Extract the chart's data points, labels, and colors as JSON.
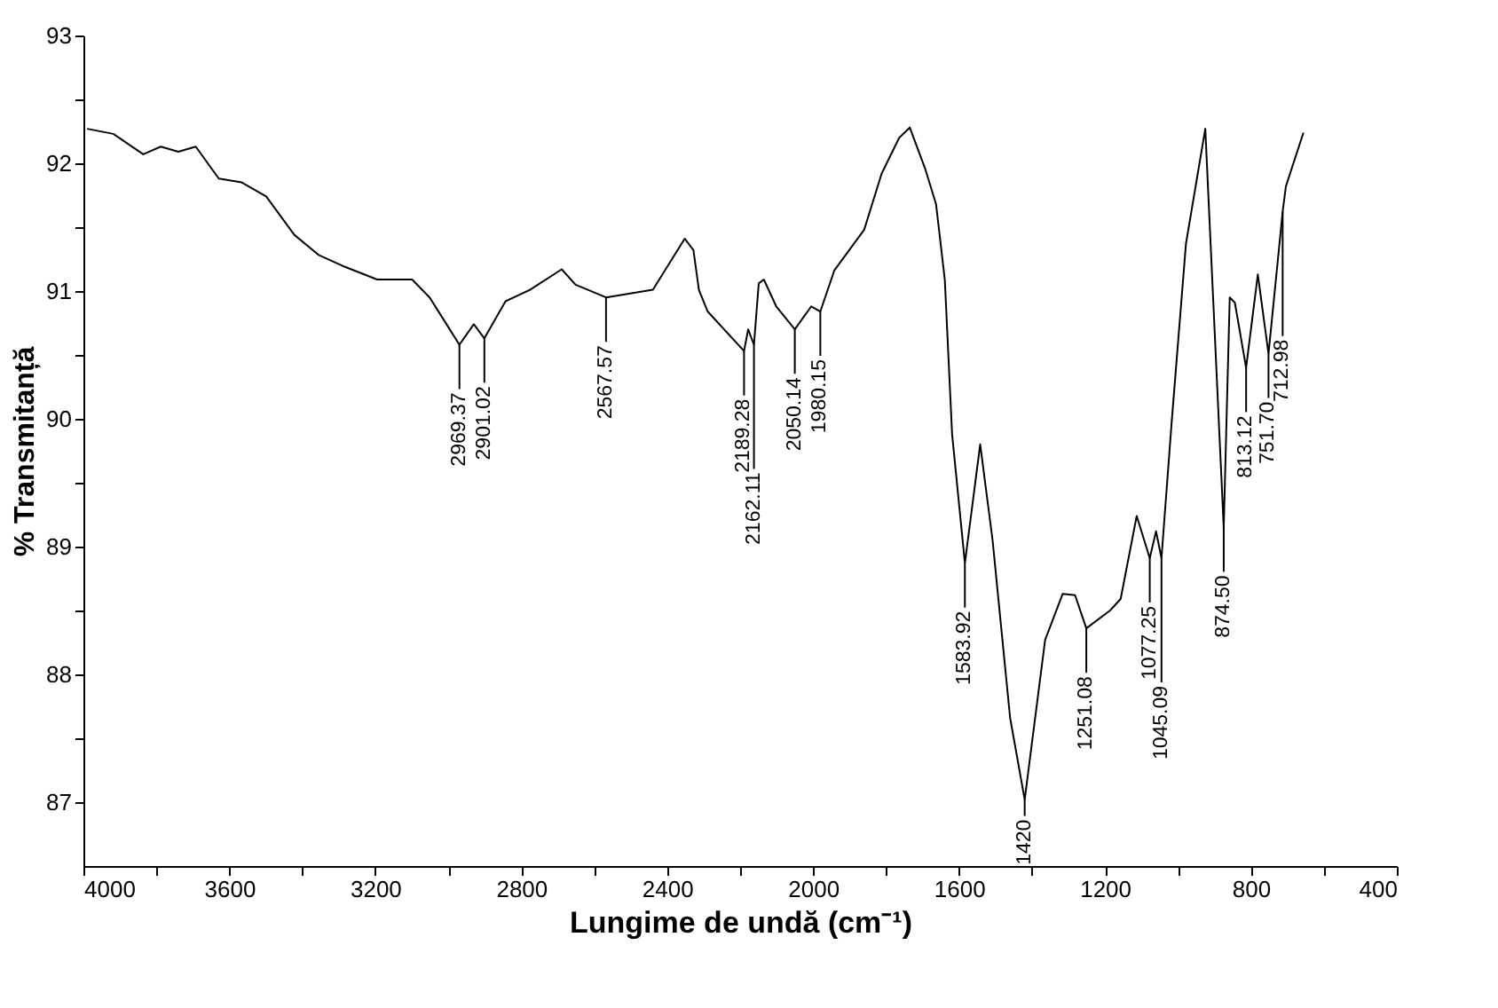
{
  "chart_data": {
    "type": "line",
    "xlabel": "Lungime de undă (cm⁻¹)",
    "ylabel": "% Transmitanță",
    "xlim": [
      4000,
      400
    ],
    "ylim": [
      86.5,
      93
    ],
    "xticks": [
      4000,
      {
        "value": 3800,
        "label": null
      },
      3600,
      {
        "value": 3400,
        "label": null
      },
      3200,
      {
        "value": 3000,
        "label": null
      },
      2800,
      {
        "value": 2600,
        "label": null
      },
      2400,
      {
        "value": 2200,
        "label": null
      },
      2000,
      {
        "value": 1800,
        "label": null
      },
      1600,
      {
        "value": 1400,
        "label": null
      },
      1200,
      {
        "value": 1000,
        "label": null
      },
      800,
      {
        "value": 600,
        "label": null
      },
      400
    ],
    "yticks": [
      87,
      {
        "value": 87.5,
        "label": null
      },
      88,
      {
        "value": 88.5,
        "label": null
      },
      89,
      {
        "value": 89.5,
        "label": null
      },
      90,
      {
        "value": 90.5,
        "label": null
      },
      91,
      {
        "value": 91.5,
        "label": null
      },
      92,
      {
        "value": 92.5,
        "label": null
      },
      93
    ],
    "grid": false,
    "marker": "none",
    "line_style": "solid",
    "series": [
      {
        "color": "#000000",
        "x": [
          3990,
          3918,
          3836,
          3788,
          3740,
          3692,
          3629,
          3566,
          3499,
          3422,
          3354,
          3292,
          3195,
          3099,
          3051,
          2969.37,
          2930,
          2901.02,
          2843,
          2776,
          2689,
          2651,
          2567.57,
          2439,
          2352,
          2328,
          2313,
          2289,
          2189.28,
          2178,
          2162.11,
          2149,
          2135,
          2101,
          2050.14,
          2005,
          1980.15,
          1942,
          1860,
          1812,
          1764,
          1735,
          1692,
          1663,
          1639,
          1619,
          1583.92,
          1542,
          1508,
          1460,
          1420,
          1364,
          1316,
          1282,
          1251.08,
          1186,
          1157,
          1113,
          1077.25,
          1060,
          1045.09,
          1017,
          978,
          925,
          874.5,
          858,
          844,
          813.12,
          781,
          751.7,
          712.98,
          704,
          656
        ],
        "values": [
          92.27,
          92.23,
          92.07,
          92.13,
          92.09,
          92.13,
          91.88,
          91.85,
          91.74,
          91.44,
          91.28,
          91.2,
          91.09,
          91.09,
          90.95,
          90.58,
          90.74,
          90.63,
          90.92,
          91.01,
          91.17,
          91.05,
          90.95,
          91.01,
          91.41,
          91.32,
          91.01,
          90.84,
          90.53,
          90.7,
          90.58,
          91.06,
          91.09,
          90.88,
          90.7,
          90.88,
          90.84,
          91.16,
          91.48,
          91.92,
          92.2,
          92.28,
          91.95,
          91.68,
          91.09,
          89.88,
          88.87,
          89.8,
          89.05,
          87.66,
          87.02,
          88.27,
          88.63,
          88.62,
          88.36,
          88.5,
          88.59,
          89.24,
          88.91,
          89.12,
          88.91,
          89.98,
          91.37,
          92.27,
          89.15,
          90.95,
          90.91,
          90.4,
          91.13,
          90.51,
          91.62,
          91.82,
          92.24
        ]
      }
    ],
    "annotations": [
      {
        "text": "2969.37",
        "x": 2969.37,
        "y": 90.58
      },
      {
        "text": "2901.02",
        "x": 2901.02,
        "y": 90.63
      },
      {
        "text": "2567.57",
        "x": 2567.57,
        "y": 90.95
      },
      {
        "text": "2189.28",
        "x": 2189.28,
        "y": 90.53
      },
      {
        "text": "2162.11",
        "x": 2162.11,
        "y": 90.58
      },
      {
        "text": "2050.14",
        "x": 2050.14,
        "y": 90.7
      },
      {
        "text": "1980.15",
        "x": 1980.15,
        "y": 90.84
      },
      {
        "text": "1583.92",
        "x": 1583.92,
        "y": 88.87
      },
      {
        "text": "1420",
        "x": 1420,
        "y": 87.02
      },
      {
        "text": "1251.08",
        "x": 1251.08,
        "y": 88.36
      },
      {
        "text": "1077.25",
        "x": 1077.25,
        "y": 88.91
      },
      {
        "text": "1045.09",
        "x": 1045.09,
        "y": 88.91
      },
      {
        "text": "874.50",
        "x": 874.5,
        "y": 89.15
      },
      {
        "text": "813.12",
        "x": 813.12,
        "y": 90.4
      },
      {
        "text": "751.70",
        "x": 751.7,
        "y": 90.51
      },
      {
        "text": "712.98",
        "x": 712.98,
        "y": 91.62
      }
    ]
  }
}
